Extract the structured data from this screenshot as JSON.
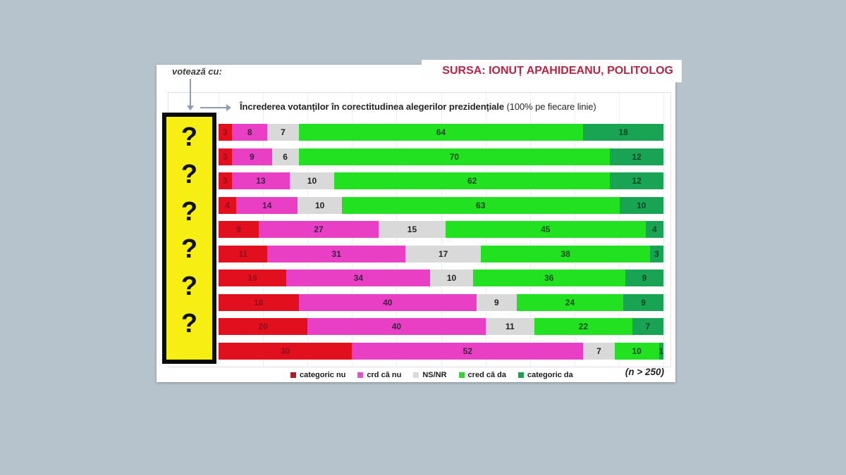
{
  "header": {
    "voteaza_label": "votează cu:",
    "sursa_label": "SURSA: IONUȚ APAHIDEANU, POLITOLOG"
  },
  "chart_data": {
    "type": "bar",
    "stacked": true,
    "orientation": "horizontal",
    "title": "Încrederea votanților în corectitudinea alegerilor prezidențiale",
    "title_suffix": "(100% pe fiecare linie)",
    "x_max": 100,
    "grid": true,
    "legend_position": "bottom",
    "hidden_row_labels": [
      "?",
      "?",
      "?",
      "?",
      "?",
      "?"
    ],
    "series": [
      {
        "name": "categoric nu",
        "color": "#e20f1e",
        "label_color": "#8f0e1d",
        "swatch": "#ad1b2b",
        "values": [
          3,
          3,
          3,
          4,
          9,
          11,
          16,
          18,
          20,
          30
        ]
      },
      {
        "name": "crd că nu",
        "color": "#e93fc5",
        "label_color": "#3a1f3e",
        "swatch": "#e055cb",
        "values": [
          8,
          9,
          13,
          14,
          27,
          31,
          34,
          40,
          40,
          52
        ]
      },
      {
        "name": "NS/NR",
        "color": "#d9d9d9",
        "label_color": "#1f1f1f",
        "swatch": "#d9d9d9",
        "values": [
          7,
          6,
          10,
          10,
          15,
          17,
          10,
          9,
          11,
          7
        ]
      },
      {
        "name": "cred că da",
        "color": "#21e121",
        "label_color": "#1c4a1c",
        "swatch": "#35d435",
        "values": [
          64,
          70,
          62,
          63,
          45,
          38,
          36,
          24,
          22,
          10
        ]
      },
      {
        "name": "categoric da",
        "color": "#18a453",
        "label_color": "#0c4527",
        "swatch": "#1f9e52",
        "values": [
          18,
          12,
          12,
          10,
          4,
          3,
          9,
          9,
          7,
          1
        ]
      }
    ],
    "note": "(n > 250)"
  },
  "colors": {
    "background": "#b6c2cc",
    "panel": "#ffffff",
    "sursa_text": "#b22746",
    "redact_box_fill": "#f7ee13",
    "redact_box_border": "#0a0a0a",
    "arrow": "#8e9db4"
  }
}
